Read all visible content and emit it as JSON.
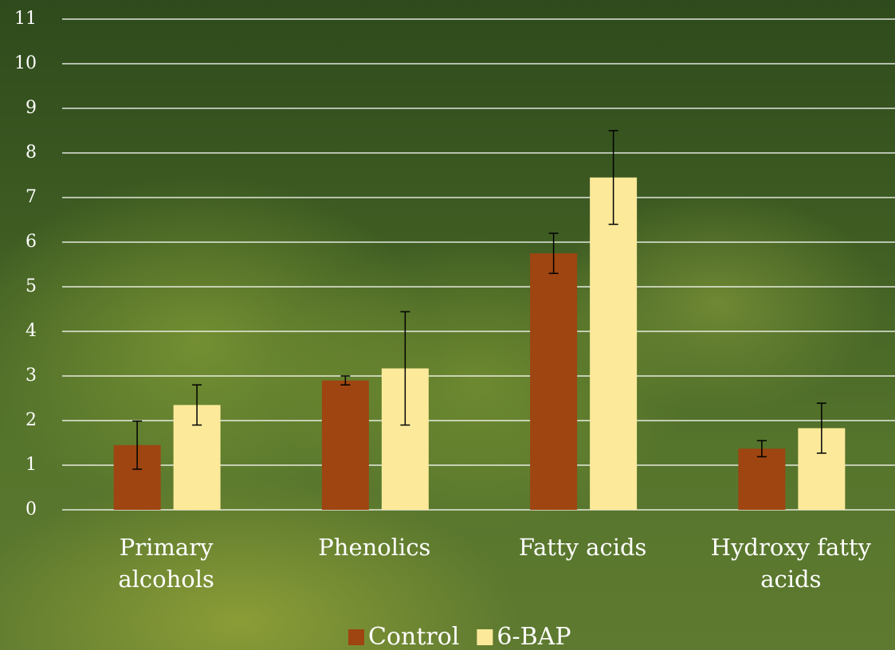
{
  "chart_data": {
    "type": "bar",
    "categories": [
      "Primary alcohols",
      "Phenolics",
      "Fatty acids",
      "Hydroxy fatty acids"
    ],
    "series": [
      {
        "name": "Control",
        "color": "#9e4511",
        "values": [
          1.45,
          2.9,
          5.75,
          1.37
        ],
        "errors": [
          0.54,
          0.1,
          0.45,
          0.18
        ]
      },
      {
        "name": "6-BAP",
        "color": "#fce99a",
        "values": [
          2.35,
          3.17,
          7.45,
          1.83
        ],
        "errors": [
          0.45,
          1.27,
          1.05,
          0.56
        ]
      }
    ],
    "ylim": [
      0,
      11
    ],
    "yticks": [
      0,
      1,
      2,
      3,
      4,
      5,
      6,
      7,
      8,
      9,
      10,
      11
    ],
    "grid": true,
    "legend": "bottom"
  }
}
